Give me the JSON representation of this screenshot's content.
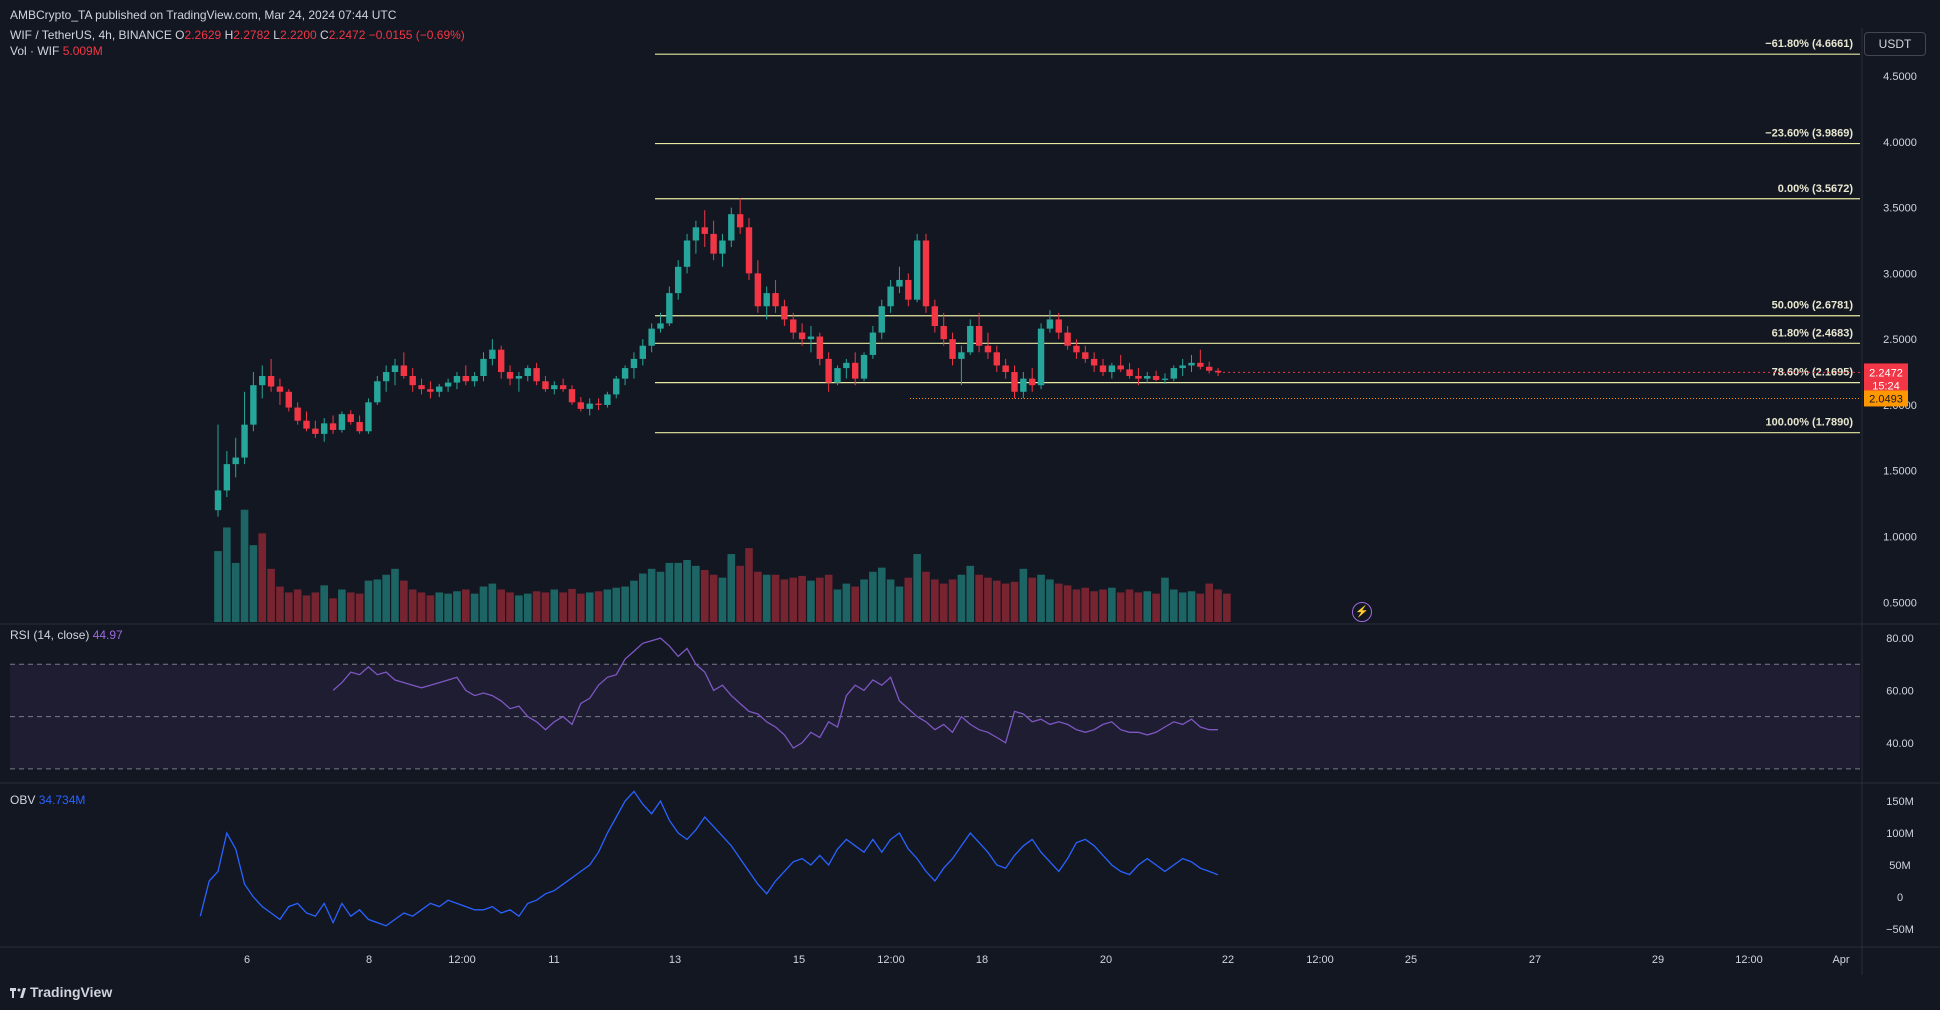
{
  "publisher": "AMBCrypto_TA published on TradingView.com, Mar 24, 2024 07:44 UTC",
  "symbol": {
    "title": "WIF / TetherUS, 4h, BINANCE",
    "open_label": "O",
    "open": "2.2629",
    "high_label": "H",
    "high": "2.2782",
    "low_label": "L",
    "low": "2.2200",
    "close_label": "C",
    "close": "2.2472",
    "change": "−0.0155 (−0.69%)"
  },
  "volume_legend": {
    "label": "Vol · WIF",
    "value": "5.009M"
  },
  "rsi_legend": {
    "label": "RSI (14, close)",
    "value": "44.97"
  },
  "obv_legend": {
    "label": "OBV",
    "value": "34.734M"
  },
  "currency_button": "USDT",
  "last_price": {
    "value": "2.2472",
    "countdown": "15:24"
  },
  "level_badge": "2.0493",
  "footer": {
    "logo": "TradingView"
  },
  "colors": {
    "up": "#26a69a",
    "down": "#f23645",
    "fib": "#e8e8a0",
    "rsi": "#7e57c2",
    "obv": "#2962ff",
    "background": "#131722"
  },
  "icons": {
    "bolt": "lightning-icon",
    "logo": "tradingview-logo-icon"
  },
  "chart_data": [
    {
      "type": "candlestick",
      "title": "WIF / TetherUS, 4h, BINANCE",
      "ylim": [
        0.35,
        4.85
      ],
      "y_ticks": [
        "4.5000",
        "4.0000",
        "3.5000",
        "3.0000",
        "2.5000",
        "2.0000",
        "1.5000",
        "1.0000",
        "0.5000"
      ],
      "x_ticks": [
        "6",
        "8",
        "12:00",
        "11",
        "13",
        "15",
        "12:00",
        "18",
        "20",
        "22",
        "12:00",
        "25",
        "27",
        "29",
        "12:00",
        "Apr"
      ],
      "ohlc": [
        [
          1.2,
          1.85,
          1.15,
          1.35
        ],
        [
          1.35,
          1.65,
          1.3,
          1.55
        ],
        [
          1.55,
          1.75,
          1.45,
          1.6
        ],
        [
          1.6,
          2.1,
          1.55,
          1.85
        ],
        [
          1.85,
          2.25,
          1.8,
          2.15
        ],
        [
          2.15,
          2.3,
          2.05,
          2.22
        ],
        [
          2.22,
          2.35,
          2.1,
          2.14
        ],
        [
          2.14,
          2.2,
          2.0,
          2.1
        ],
        [
          2.1,
          2.12,
          1.95,
          1.98
        ],
        [
          1.98,
          2.02,
          1.85,
          1.88
        ],
        [
          1.88,
          1.95,
          1.8,
          1.82
        ],
        [
          1.82,
          1.88,
          1.75,
          1.78
        ],
        [
          1.78,
          1.9,
          1.72,
          1.86
        ],
        [
          1.86,
          1.92,
          1.78,
          1.81
        ],
        [
          1.81,
          1.95,
          1.79,
          1.93
        ],
        [
          1.93,
          1.96,
          1.85,
          1.87
        ],
        [
          1.87,
          1.92,
          1.78,
          1.8
        ],
        [
          1.8,
          2.05,
          1.78,
          2.02
        ],
        [
          2.02,
          2.22,
          2.0,
          2.18
        ],
        [
          2.18,
          2.3,
          2.1,
          2.25
        ],
        [
          2.25,
          2.35,
          2.15,
          2.3
        ],
        [
          2.3,
          2.4,
          2.2,
          2.22
        ],
        [
          2.22,
          2.28,
          2.1,
          2.15
        ],
        [
          2.15,
          2.2,
          2.08,
          2.12
        ],
        [
          2.12,
          2.18,
          2.05,
          2.1
        ],
        [
          2.1,
          2.16,
          2.06,
          2.14
        ],
        [
          2.14,
          2.2,
          2.1,
          2.17
        ],
        [
          2.17,
          2.25,
          2.12,
          2.22
        ],
        [
          2.22,
          2.3,
          2.15,
          2.18
        ],
        [
          2.18,
          2.25,
          2.14,
          2.22
        ],
        [
          2.22,
          2.4,
          2.18,
          2.35
        ],
        [
          2.35,
          2.5,
          2.3,
          2.42
        ],
        [
          2.42,
          2.45,
          2.2,
          2.25
        ],
        [
          2.25,
          2.3,
          2.15,
          2.2
        ],
        [
          2.2,
          2.25,
          2.1,
          2.22
        ],
        [
          2.22,
          2.3,
          2.18,
          2.28
        ],
        [
          2.28,
          2.32,
          2.15,
          2.18
        ],
        [
          2.18,
          2.22,
          2.1,
          2.12
        ],
        [
          2.12,
          2.18,
          2.08,
          2.15
        ],
        [
          2.15,
          2.2,
          2.1,
          2.12
        ],
        [
          2.12,
          2.15,
          2.0,
          2.02
        ],
        [
          2.02,
          2.06,
          1.95,
          1.97
        ],
        [
          1.97,
          2.05,
          1.92,
          2.01
        ],
        [
          2.01,
          2.05,
          1.96,
          2.0
        ],
        [
          2.0,
          2.1,
          1.98,
          2.08
        ],
        [
          2.08,
          2.22,
          2.05,
          2.2
        ],
        [
          2.2,
          2.3,
          2.15,
          2.28
        ],
        [
          2.28,
          2.4,
          2.2,
          2.35
        ],
        [
          2.35,
          2.5,
          2.3,
          2.45
        ],
        [
          2.45,
          2.62,
          2.4,
          2.58
        ],
        [
          2.58,
          2.7,
          2.55,
          2.62
        ],
        [
          2.62,
          2.9,
          2.6,
          2.85
        ],
        [
          2.85,
          3.1,
          2.8,
          3.05
        ],
        [
          3.05,
          3.3,
          3.0,
          3.25
        ],
        [
          3.25,
          3.4,
          3.15,
          3.35
        ],
        [
          3.35,
          3.48,
          3.2,
          3.3
        ],
        [
          3.3,
          3.4,
          3.1,
          3.15
        ],
        [
          3.15,
          3.3,
          3.05,
          3.25
        ],
        [
          3.25,
          3.5,
          3.2,
          3.45
        ],
        [
          3.45,
          3.57,
          3.3,
          3.35
        ],
        [
          3.35,
          3.42,
          2.95,
          3.0
        ],
        [
          3.0,
          3.1,
          2.7,
          2.75
        ],
        [
          2.75,
          2.9,
          2.65,
          2.85
        ],
        [
          2.85,
          2.95,
          2.7,
          2.75
        ],
        [
          2.75,
          2.8,
          2.6,
          2.65
        ],
        [
          2.65,
          2.7,
          2.5,
          2.55
        ],
        [
          2.55,
          2.62,
          2.45,
          2.5
        ],
        [
          2.5,
          2.6,
          2.4,
          2.52
        ],
        [
          2.52,
          2.55,
          2.3,
          2.35
        ],
        [
          2.35,
          2.4,
          2.1,
          2.17
        ],
        [
          2.17,
          2.3,
          2.15,
          2.28
        ],
        [
          2.28,
          2.35,
          2.2,
          2.32
        ],
        [
          2.32,
          2.4,
          2.15,
          2.2
        ],
        [
          2.2,
          2.4,
          2.18,
          2.38
        ],
        [
          2.38,
          2.6,
          2.35,
          2.55
        ],
        [
          2.55,
          2.8,
          2.5,
          2.75
        ],
        [
          2.75,
          2.95,
          2.7,
          2.9
        ],
        [
          2.9,
          3.05,
          2.85,
          2.95
        ],
        [
          2.95,
          3.0,
          2.75,
          2.8
        ],
        [
          2.8,
          3.3,
          2.78,
          3.25
        ],
        [
          3.25,
          3.3,
          2.7,
          2.75
        ],
        [
          2.75,
          2.8,
          2.55,
          2.6
        ],
        [
          2.6,
          2.7,
          2.45,
          2.5
        ],
        [
          2.5,
          2.55,
          2.3,
          2.35
        ],
        [
          2.35,
          2.45,
          2.15,
          2.4
        ],
        [
          2.4,
          2.65,
          2.38,
          2.6
        ],
        [
          2.6,
          2.7,
          2.4,
          2.45
        ],
        [
          2.45,
          2.55,
          2.35,
          2.4
        ],
        [
          2.4,
          2.45,
          2.25,
          2.3
        ],
        [
          2.3,
          2.35,
          2.2,
          2.25
        ],
        [
          2.25,
          2.3,
          2.05,
          2.1
        ],
        [
          2.1,
          2.25,
          2.05,
          2.2
        ],
        [
          2.2,
          2.28,
          2.1,
          2.15
        ],
        [
          2.15,
          2.62,
          2.12,
          2.58
        ],
        [
          2.58,
          2.72,
          2.55,
          2.65
        ],
        [
          2.65,
          2.7,
          2.5,
          2.55
        ],
        [
          2.55,
          2.6,
          2.42,
          2.45
        ],
        [
          2.45,
          2.5,
          2.35,
          2.4
        ],
        [
          2.4,
          2.45,
          2.32,
          2.35
        ],
        [
          2.35,
          2.4,
          2.25,
          2.3
        ],
        [
          2.3,
          2.35,
          2.22,
          2.25
        ],
        [
          2.25,
          2.32,
          2.2,
          2.3
        ],
        [
          2.3,
          2.38,
          2.25,
          2.27
        ],
        [
          2.27,
          2.32,
          2.2,
          2.22
        ],
        [
          2.22,
          2.28,
          2.15,
          2.2
        ],
        [
          2.2,
          2.25,
          2.17,
          2.22
        ],
        [
          2.22,
          2.26,
          2.18,
          2.19
        ],
        [
          2.19,
          2.24,
          2.16,
          2.2
        ],
        [
          2.2,
          2.3,
          2.18,
          2.28
        ],
        [
          2.28,
          2.35,
          2.22,
          2.3
        ],
        [
          2.3,
          2.38,
          2.25,
          2.32
        ],
        [
          2.32,
          2.42,
          2.27,
          2.29
        ],
        [
          2.29,
          2.33,
          2.24,
          2.26
        ],
        [
          2.26,
          2.28,
          2.22,
          2.2472
        ]
      ],
      "fib_levels": [
        {
          "label": "−61.80% (4.6661)",
          "value": 4.6661
        },
        {
          "label": "−23.60% (3.9869)",
          "value": 3.9869
        },
        {
          "label": "0.00% (3.5672)",
          "value": 3.5672
        },
        {
          "label": "50.00% (2.6781)",
          "value": 2.6781
        },
        {
          "label": "61.80% (2.4683)",
          "value": 2.4683
        },
        {
          "label": "78.60% (2.1695)",
          "value": 2.1695
        },
        {
          "label": "100.00% (1.7890)",
          "value": 1.789
        }
      ],
      "dotted_level": 2.0493
    },
    {
      "type": "bar",
      "title": "Vol · WIF",
      "values": [
        1.2,
        1.6,
        1.0,
        1.9,
        1.3,
        1.5,
        0.9,
        0.6,
        0.5,
        0.55,
        0.45,
        0.5,
        0.62,
        0.4,
        0.55,
        0.5,
        0.48,
        0.7,
        0.72,
        0.8,
        0.9,
        0.7,
        0.55,
        0.5,
        0.45,
        0.5,
        0.48,
        0.52,
        0.55,
        0.48,
        0.6,
        0.65,
        0.55,
        0.5,
        0.45,
        0.48,
        0.52,
        0.5,
        0.55,
        0.5,
        0.56,
        0.48,
        0.5,
        0.52,
        0.55,
        0.58,
        0.6,
        0.7,
        0.82,
        0.9,
        0.85,
        1.0,
        1.0,
        1.05,
        0.95,
        0.88,
        0.8,
        0.75,
        1.15,
        0.95,
        1.25,
        0.85,
        0.8,
        0.8,
        0.72,
        0.75,
        0.78,
        0.7,
        0.75,
        0.8,
        0.55,
        0.65,
        0.6,
        0.72,
        0.85,
        0.92,
        0.72,
        0.6,
        0.75,
        1.15,
        0.85,
        0.72,
        0.65,
        0.72,
        0.8,
        0.95,
        0.8,
        0.75,
        0.7,
        0.65,
        0.68,
        0.9,
        0.75,
        0.8,
        0.72,
        0.65,
        0.62,
        0.55,
        0.58,
        0.52,
        0.55,
        0.58,
        0.5,
        0.55,
        0.5,
        0.52,
        0.48,
        0.75,
        0.55,
        0.5,
        0.52,
        0.48,
        0.65,
        0.55,
        0.48
      ],
      "up": [
        1,
        1,
        1,
        1,
        1,
        0,
        0,
        0,
        0,
        0,
        0,
        0,
        1,
        0,
        1,
        0,
        0,
        1,
        1,
        1,
        1,
        0,
        0,
        0,
        0,
        1,
        1,
        1,
        0,
        1,
        1,
        1,
        0,
        0,
        1,
        1,
        0,
        0,
        1,
        0,
        0,
        0,
        1,
        0,
        1,
        1,
        1,
        1,
        1,
        1,
        1,
        1,
        1,
        1,
        1,
        0,
        0,
        1,
        1,
        0,
        0,
        0,
        1,
        0,
        0,
        0,
        0,
        1,
        0,
        0,
        1,
        1,
        0,
        1,
        1,
        1,
        1,
        1,
        0,
        1,
        0,
        0,
        0,
        0,
        1,
        1,
        0,
        0,
        0,
        0,
        0,
        1,
        0,
        1,
        1,
        0,
        0,
        0,
        0,
        0,
        0,
        1,
        0,
        0,
        0,
        1,
        0,
        1,
        1,
        1,
        1,
        0,
        0,
        0
      ]
    },
    {
      "type": "line",
      "title": "RSI (14, close)",
      "ylim": [
        25,
        85
      ],
      "y_ticks": [
        "80.00",
        "60.00",
        "40.00"
      ],
      "bands": [
        30,
        50,
        70
      ],
      "values": [
        60,
        63,
        67,
        66,
        69,
        66,
        67,
        64,
        63,
        62,
        61,
        62,
        63,
        64,
        65,
        60,
        58,
        59,
        58,
        56,
        53,
        54,
        50,
        48,
        45,
        48,
        50,
        47,
        55,
        57,
        62,
        65,
        66,
        72,
        75,
        78,
        79,
        80,
        77,
        73,
        76,
        70,
        67,
        60,
        62,
        58,
        55,
        52,
        51,
        48,
        46,
        43,
        38,
        40,
        44,
        42,
        48,
        46,
        58,
        62,
        60,
        64,
        62,
        65,
        56,
        53,
        50,
        48,
        45,
        47,
        44,
        50,
        47,
        45,
        44,
        42,
        40,
        52,
        51,
        48,
        49,
        47,
        48,
        47,
        45,
        44,
        45,
        47,
        48,
        45,
        44,
        44,
        43,
        44,
        46,
        48,
        47,
        49,
        46,
        45,
        44.97
      ]
    },
    {
      "type": "line",
      "title": "OBV",
      "ylim": [
        -75,
        175
      ],
      "y_ticks": [
        "150M",
        "100M",
        "50M",
        "0",
        "−50M"
      ],
      "values": [
        -30,
        25,
        40,
        100,
        75,
        20,
        0,
        -15,
        -25,
        -35,
        -15,
        -10,
        -25,
        -30,
        -10,
        -40,
        -10,
        -30,
        -20,
        -35,
        -40,
        -45,
        -35,
        -25,
        -30,
        -20,
        -10,
        -15,
        -5,
        -10,
        -15,
        -20,
        -20,
        -15,
        -25,
        -20,
        -30,
        -10,
        -5,
        5,
        10,
        20,
        30,
        40,
        50,
        70,
        100,
        125,
        150,
        165,
        145,
        130,
        150,
        120,
        100,
        90,
        105,
        125,
        110,
        95,
        80,
        60,
        40,
        20,
        5,
        25,
        40,
        55,
        60,
        50,
        65,
        50,
        75,
        90,
        80,
        70,
        90,
        70,
        90,
        100,
        75,
        60,
        40,
        25,
        45,
        60,
        80,
        100,
        85,
        70,
        50,
        45,
        65,
        80,
        90,
        70,
        55,
        40,
        60,
        85,
        90,
        80,
        65,
        50,
        40,
        35,
        50,
        60,
        50,
        40,
        50,
        60,
        55,
        45,
        40,
        34.734
      ]
    }
  ]
}
